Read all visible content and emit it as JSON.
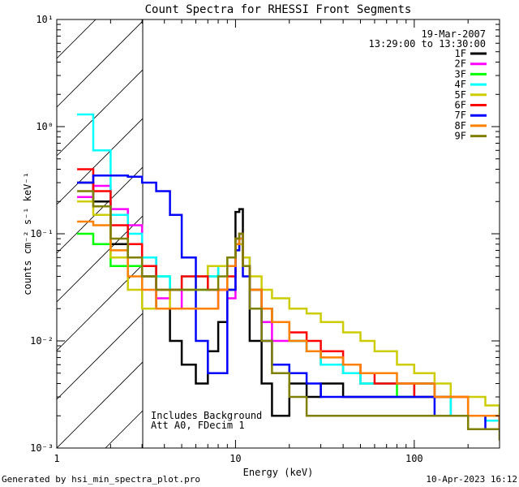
{
  "chart_data": {
    "type": "line",
    "title": "Count Spectra for RHESSI Front Segments",
    "xlabel": "Energy (keV)",
    "ylabel": "counts cm⁻² s⁻¹ keV⁻¹",
    "xscale": "log",
    "yscale": "log",
    "xlim": [
      1,
      300
    ],
    "ylim": [
      0.001,
      10
    ],
    "x_ticks": [
      {
        "value": 1,
        "label": "1"
      },
      {
        "value": 10,
        "label": "10"
      },
      {
        "value": 100,
        "label": "100"
      }
    ],
    "y_ticks": [
      {
        "value": 10,
        "label": "10¹"
      },
      {
        "value": 1,
        "label": "10⁰"
      },
      {
        "value": 0.1,
        "label": "10⁻¹"
      },
      {
        "value": 0.01,
        "label": "10⁻²"
      },
      {
        "value": 0.001,
        "label": "10⁻³"
      }
    ],
    "legend_position": "top-right",
    "date_text": "19-Mar-2007",
    "time_range_text": "13:29:00 to 13:30:00",
    "annotations": [
      "Includes Background",
      "Att A0, FDecim 1"
    ],
    "excluded_region": {
      "from": 1,
      "to": 3,
      "style": "hatched"
    },
    "energy_bins": [
      1.3,
      1.6,
      2.0,
      2.5,
      3.0,
      3.6,
      4.3,
      5.0,
      6.0,
      7.0,
      8.0,
      9.0,
      10.0,
      10.5,
      11.0,
      12.0,
      14.0,
      16.0,
      20.0,
      25.0,
      30.0,
      40.0,
      50.0,
      60.0,
      80.0,
      100.0,
      130.0,
      160.0,
      200.0,
      250.0,
      300.0
    ],
    "series": [
      {
        "name": "1F",
        "color": "#000000",
        "values": [
          0.3,
          0.2,
          0.08,
          0.05,
          0.04,
          0.02,
          0.01,
          0.006,
          0.004,
          0.008,
          0.015,
          0.03,
          0.16,
          0.17,
          0.05,
          0.01,
          0.004,
          0.002,
          0.004,
          0.003,
          0.004,
          0.003,
          0.003,
          0.003,
          0.003,
          0.004,
          0.003,
          0.002,
          0.002,
          0.002,
          0.0015
        ]
      },
      {
        "name": "2F",
        "color": "#ff00ff",
        "values": [
          0.22,
          0.28,
          0.17,
          0.12,
          0.06,
          0.025,
          0.03,
          0.02,
          0.02,
          0.02,
          0.03,
          0.025,
          0.08,
          0.1,
          0.06,
          0.03,
          0.015,
          0.01,
          0.01,
          0.008,
          0.006,
          0.005,
          0.004,
          0.004,
          0.004,
          0.003,
          0.003,
          0.002,
          0.002,
          0.0018,
          0.0015
        ]
      },
      {
        "name": "3F",
        "color": "#00ff00",
        "values": [
          0.1,
          0.08,
          0.05,
          0.05,
          0.05,
          0.04,
          0.03,
          0.03,
          0.03,
          0.04,
          0.05,
          0.06,
          0.08,
          0.09,
          0.05,
          0.03,
          0.02,
          0.015,
          0.01,
          0.008,
          0.006,
          0.005,
          0.004,
          0.004,
          0.003,
          0.003,
          0.003,
          0.002,
          0.002,
          0.0018,
          0.0015
        ]
      },
      {
        "name": "4F",
        "color": "#00ffff",
        "values": [
          1.3,
          0.6,
          0.15,
          0.1,
          0.06,
          0.04,
          0.03,
          0.04,
          0.04,
          0.04,
          0.05,
          0.06,
          0.09,
          0.1,
          0.06,
          0.03,
          0.02,
          0.015,
          0.01,
          0.008,
          0.006,
          0.005,
          0.004,
          0.004,
          0.004,
          0.003,
          0.003,
          0.002,
          0.002,
          0.0018,
          0.0015
        ]
      },
      {
        "name": "5F",
        "color": "#cccc00",
        "values": [
          0.2,
          0.15,
          0.06,
          0.03,
          0.02,
          0.02,
          0.03,
          0.03,
          0.04,
          0.05,
          0.05,
          0.06,
          0.07,
          0.08,
          0.06,
          0.04,
          0.03,
          0.025,
          0.02,
          0.018,
          0.015,
          0.012,
          0.01,
          0.008,
          0.006,
          0.005,
          0.004,
          0.003,
          0.003,
          0.0025,
          0.002
        ]
      },
      {
        "name": "6F",
        "color": "#ff0000",
        "values": [
          0.4,
          0.25,
          0.12,
          0.08,
          0.05,
          0.03,
          0.03,
          0.04,
          0.04,
          0.03,
          0.03,
          0.04,
          0.09,
          0.1,
          0.05,
          0.03,
          0.02,
          0.015,
          0.012,
          0.01,
          0.008,
          0.006,
          0.005,
          0.004,
          0.004,
          0.003,
          0.003,
          0.003,
          0.002,
          0.002,
          0.0015
        ]
      },
      {
        "name": "7F",
        "color": "#0000ff",
        "values": [
          0.3,
          0.35,
          0.35,
          0.34,
          0.3,
          0.25,
          0.15,
          0.06,
          0.01,
          0.005,
          0.005,
          0.03,
          0.07,
          0.09,
          0.04,
          0.02,
          0.01,
          0.006,
          0.005,
          0.004,
          0.003,
          0.003,
          0.003,
          0.003,
          0.003,
          0.003,
          0.002,
          0.002,
          0.002,
          0.0015,
          0.0015
        ]
      },
      {
        "name": "8F",
        "color": "#ff8000",
        "values": [
          0.13,
          0.12,
          0.07,
          0.04,
          0.03,
          0.02,
          0.02,
          0.02,
          0.02,
          0.02,
          0.03,
          0.05,
          0.08,
          0.09,
          0.05,
          0.03,
          0.02,
          0.015,
          0.01,
          0.008,
          0.007,
          0.006,
          0.005,
          0.005,
          0.004,
          0.004,
          0.003,
          0.003,
          0.002,
          0.002,
          0.0015
        ]
      },
      {
        "name": "9F",
        "color": "#808000",
        "values": [
          0.25,
          0.18,
          0.09,
          0.06,
          0.04,
          0.03,
          0.03,
          0.03,
          0.03,
          0.03,
          0.04,
          0.06,
          0.09,
          0.1,
          0.05,
          0.02,
          0.01,
          0.005,
          0.003,
          0.002,
          0.002,
          0.002,
          0.002,
          0.002,
          0.002,
          0.002,
          0.002,
          0.002,
          0.0015,
          0.0015,
          0.0012
        ]
      }
    ]
  },
  "footer": {
    "generated_by": "Generated by hsi_min_spectra_plot.pro",
    "date": "10-Apr-2023 16:12"
  }
}
